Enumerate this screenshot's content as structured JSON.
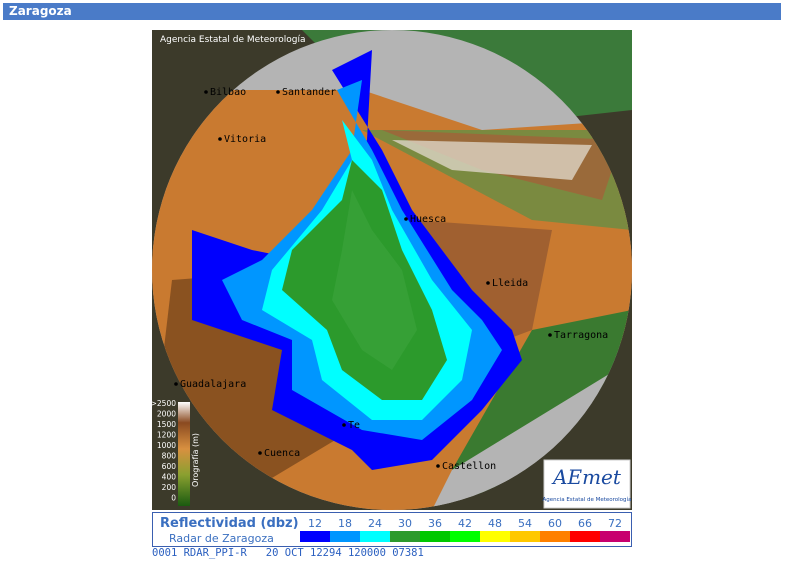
{
  "header": {
    "title": "Zaragoza"
  },
  "map": {
    "copyright": "Agencia Estatal de Meteorología",
    "places": [
      "Bilbao",
      "Santander",
      "Vitoria",
      "Huesca",
      "Lleida",
      "Tarragona",
      "Guadalajara",
      "Te",
      "Cuenca",
      "Castellon"
    ],
    "orography": {
      "title": "Orografía (m)",
      "levels": [
        ">2500",
        "2000",
        "1500",
        "1200",
        "1000",
        "800",
        "600",
        "400",
        "200",
        "0"
      ]
    },
    "logo": {
      "name": "AEmet",
      "subtitle": "Agencia Estatal de Meteorología"
    }
  },
  "legend": {
    "title": "Reflectividad (dbz)",
    "subtitle": "Radar de Zaragoza",
    "items": [
      {
        "label": "12",
        "color": "#0000fe"
      },
      {
        "label": "18",
        "color": "#0096ff"
      },
      {
        "label": "24",
        "color": "#00ffff"
      },
      {
        "label": "30",
        "color": "#2c9a2c"
      },
      {
        "label": "36",
        "color": "#00c800"
      },
      {
        "label": "42",
        "color": "#00ff00"
      },
      {
        "label": "48",
        "color": "#ffff00"
      },
      {
        "label": "54",
        "color": "#ffc800"
      },
      {
        "label": "60",
        "color": "#ff8000"
      },
      {
        "label": "66",
        "color": "#ff0000"
      },
      {
        "label": "72",
        "color": "#c8006e"
      }
    ]
  },
  "status": "0001 RDAR_PPI-R   20 OCT 12294 120000 07381"
}
